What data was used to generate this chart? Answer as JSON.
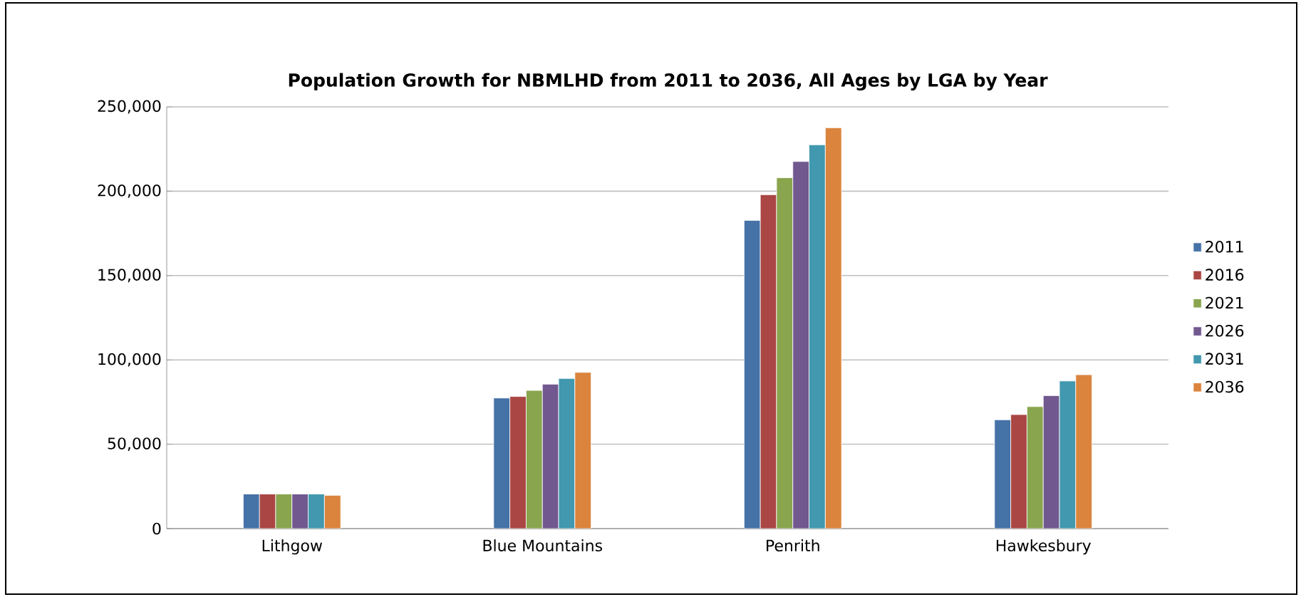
{
  "chart_data": {
    "type": "bar",
    "title": "Population Growth for NBMLHD from 2011 to 2036, All Ages by LGA by Year",
    "categories": [
      "Lithgow",
      "Blue Mountains",
      "Penrith",
      "Hawkesbury"
    ],
    "series": [
      {
        "name": "2011",
        "color": "#4572a7",
        "values": [
          20500,
          77400,
          182700,
          64500
        ]
      },
      {
        "name": "2016",
        "color": "#aa4643",
        "values": [
          20500,
          78300,
          197900,
          67600
        ]
      },
      {
        "name": "2021",
        "color": "#89a54e",
        "values": [
          20500,
          81900,
          208000,
          72300
        ]
      },
      {
        "name": "2026",
        "color": "#71588f",
        "values": [
          20500,
          85600,
          217600,
          78800
        ]
      },
      {
        "name": "2031",
        "color": "#4198af",
        "values": [
          20500,
          89000,
          227500,
          87500
        ]
      },
      {
        "name": "2036",
        "color": "#db843d",
        "values": [
          19700,
          92600,
          237600,
          91200
        ]
      }
    ],
    "ylim": [
      0,
      250000
    ],
    "yticks": [
      {
        "value": 0,
        "label": "0"
      },
      {
        "value": 50000,
        "label": "50,000"
      },
      {
        "value": 100000,
        "label": "100,000"
      },
      {
        "value": 150000,
        "label": "150,000"
      },
      {
        "value": 200000,
        "label": "200,000"
      },
      {
        "value": 250000,
        "label": "250,000"
      }
    ],
    "grid": "y",
    "legend": "right"
  }
}
